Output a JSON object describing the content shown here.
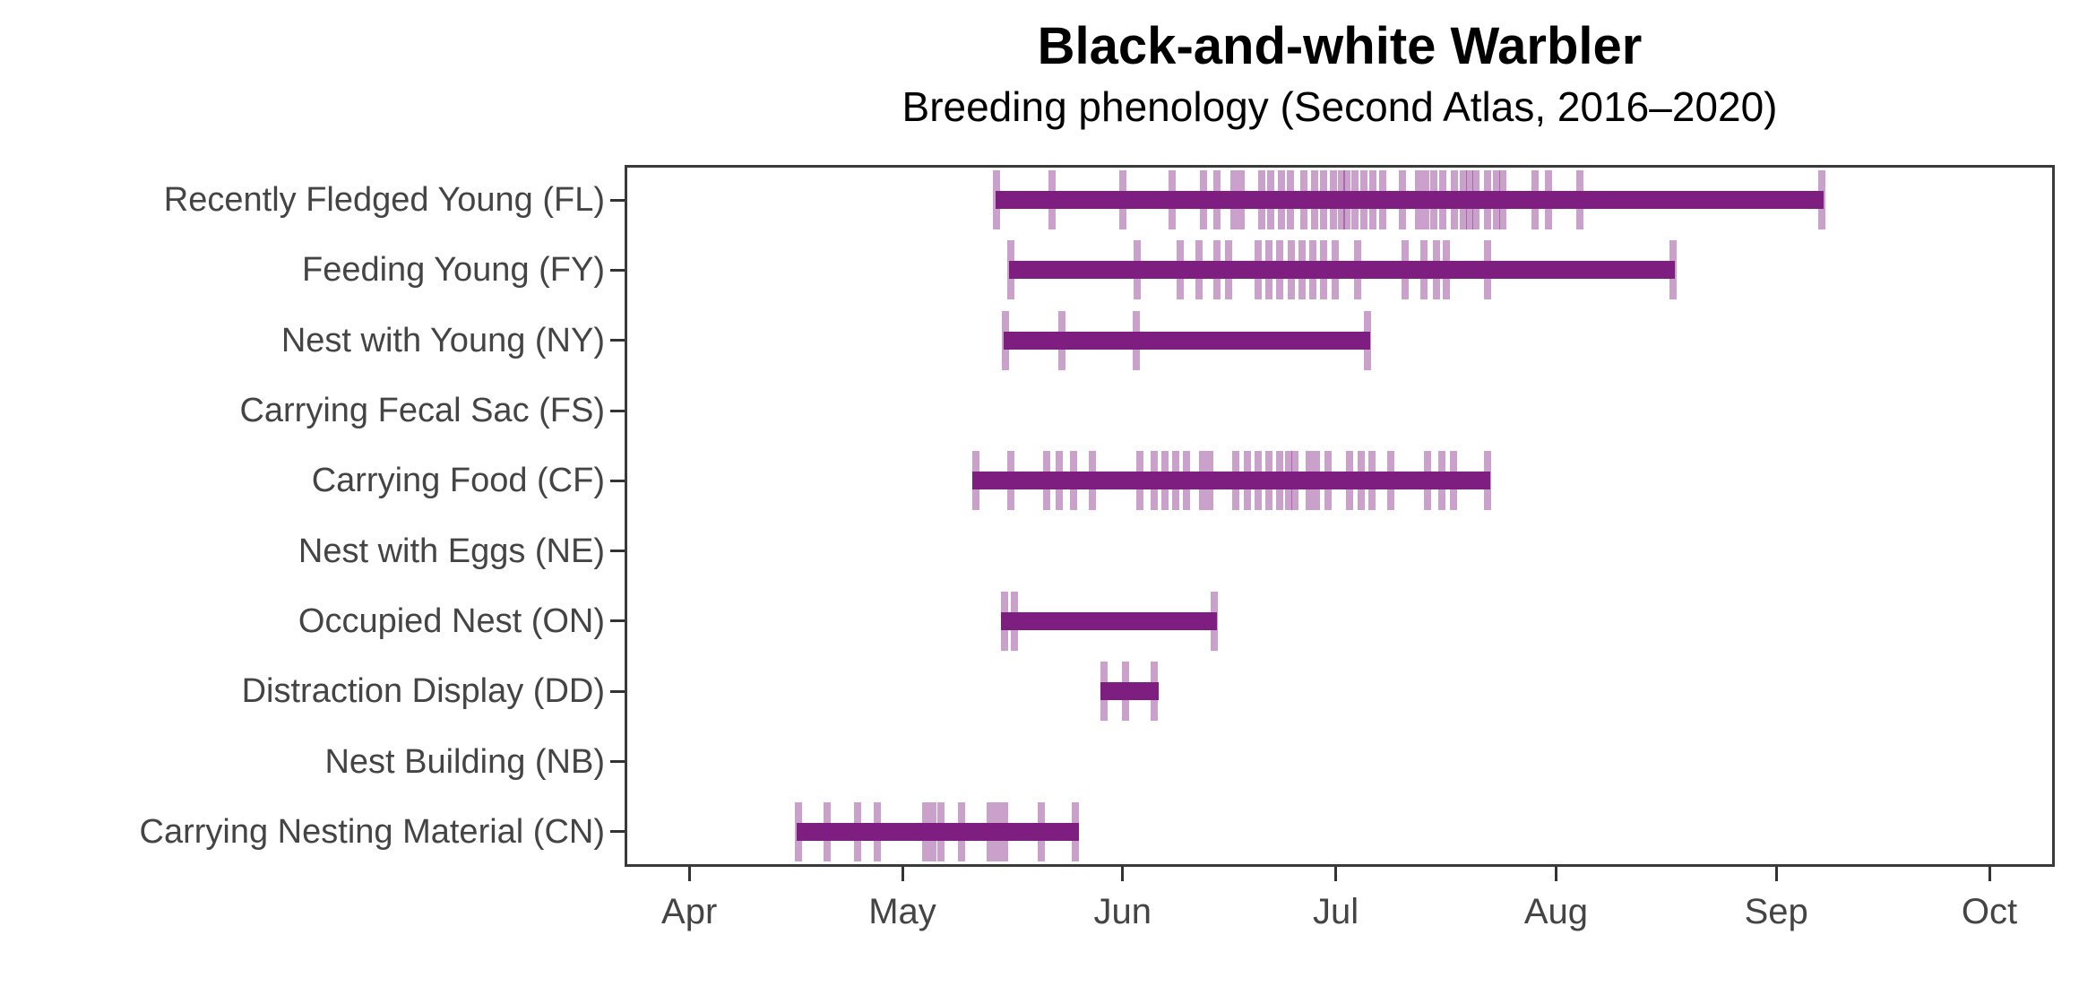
{
  "figure": {
    "title": "Black-and-white Warbler",
    "subtitle": "Breeding phenology (Second Atlas, 2016–2020)"
  },
  "chart_data": {
    "type": "bar",
    "subtype": "horizontal_date_range_with_observation_rug_ticks",
    "title": "Black-and-white Warbler",
    "subtitle": "Breeding phenology (Second Atlas, 2016–2020)",
    "xlabel": "",
    "ylabel": "",
    "legend_position": "none",
    "x_axis": {
      "unit": "day_of_year",
      "tick_labels": [
        "Apr",
        "May",
        "Jun",
        "Jul",
        "Aug",
        "Sep",
        "Oct"
      ],
      "tick_doy": [
        91,
        121,
        152,
        182,
        213,
        244,
        274
      ],
      "domain_doy": [
        81.9,
        283.2
      ],
      "grid": true
    },
    "y_axis": {
      "grid": true,
      "categories_top_to_bottom": [
        "Recently Fledged Young (FL)",
        "Feeding Young (FY)",
        "Nest with Young (NY)",
        "Carrying Fecal Sac (FS)",
        "Carrying Food (CF)",
        "Nest with Eggs (NE)",
        "Occupied Nest (ON)",
        "Distraction Display (DD)",
        "Nest Building (NB)",
        "Carrying Nesting Material (CN)"
      ]
    },
    "colors": {
      "bar": "#7e1e80",
      "observation_tick": "#7e1e80",
      "observation_tick_alpha": 0.42,
      "gridline": "#e9e9e9",
      "panel_border": "#3a3a3a",
      "axis_tick": "#333333",
      "axis_text": "#444444",
      "title_text": "#000000",
      "background": "#ffffff"
    },
    "rows": [
      {
        "code": "FL",
        "label": "Recently Fledged Young (FL)",
        "range_doy": [
          134.1,
          250.6
        ],
        "range_dates": "May 14 – Sep 7",
        "obs_doy": [
          134.3,
          142.1,
          152.0,
          159.0,
          163.4,
          165.3,
          167.7,
          168.7,
          171.6,
          172.9,
          174.4,
          175.6,
          177.5,
          179.0,
          180.3,
          181.7,
          182.8,
          183.6,
          184.7,
          186.0,
          187.2,
          188.6,
          191.4,
          193.7,
          194.6,
          195.8,
          197.1,
          198.7,
          200.0,
          200.9,
          201.7,
          203.4,
          204.6,
          205.5,
          210.1,
          212.0,
          216.4,
          250.4
        ]
      },
      {
        "code": "FY",
        "label": "Feeding Young (FY)",
        "range_doy": [
          136.0,
          229.7
        ],
        "range_dates": "May 16 – Aug 17",
        "obs_doy": [
          136.3,
          154.0,
          160.1,
          162.8,
          165.3,
          166.9,
          171.1,
          172.6,
          174.1,
          175.8,
          177.3,
          178.8,
          180.3,
          181.9,
          185.1,
          191.8,
          194.4,
          196.2,
          197.5,
          203.4,
          229.5
        ]
      },
      {
        "code": "NY",
        "label": "Nest with Young (NY)",
        "range_doy": [
          135.2,
          186.8
        ],
        "range_dates": "May 15 – Jul 6",
        "obs_doy": [
          135.5,
          143.4,
          153.9,
          186.4
        ]
      },
      {
        "code": "FS",
        "label": "Carrying Fecal Sac (FS)",
        "range_doy": null,
        "range_dates": "",
        "obs_doy": []
      },
      {
        "code": "CF",
        "label": "Carrying Food (CF)",
        "range_doy": [
          130.9,
          203.8
        ],
        "range_dates": "May 11 – Jul 23",
        "obs_doy": [
          131.4,
          136.3,
          141.3,
          143.1,
          145.1,
          147.8,
          154.4,
          156.5,
          158.0,
          159.5,
          161.0,
          163.3,
          164.3,
          167.9,
          169.5,
          171.1,
          172.6,
          174.1,
          175.3,
          176.3,
          178.3,
          179.3,
          180.9,
          183.9,
          185.6,
          187.1,
          189.7,
          194.9,
          196.9,
          198.6,
          203.4
        ]
      },
      {
        "code": "NE",
        "label": "Nest with Eggs (NE)",
        "range_doy": null,
        "range_dates": "",
        "obs_doy": []
      },
      {
        "code": "ON",
        "label": "Occupied Nest (ON)",
        "range_doy": [
          134.9,
          165.3
        ],
        "range_dates": "May 15 – Jun 14",
        "obs_doy": [
          135.4,
          136.8,
          164.9
        ]
      },
      {
        "code": "DD",
        "label": "Distraction Display (DD)",
        "range_doy": [
          148.9,
          157.1
        ],
        "range_dates": "May 29 – Jun 6",
        "obs_doy": [
          149.4,
          152.4,
          156.5
        ]
      },
      {
        "code": "NB",
        "label": "Nest Building (NB)",
        "range_doy": null,
        "range_dates": "",
        "obs_doy": []
      },
      {
        "code": "CN",
        "label": "Carrying Nesting Material (CN)",
        "range_doy": [
          106.1,
          145.8
        ],
        "range_dates": "Apr 16 – May 26",
        "obs_doy": [
          106.4,
          110.4,
          114.7,
          117.5,
          124.3,
          125.3,
          126.4,
          129.3,
          133.4,
          134.4,
          135.4,
          140.6,
          145.4
        ]
      }
    ]
  }
}
